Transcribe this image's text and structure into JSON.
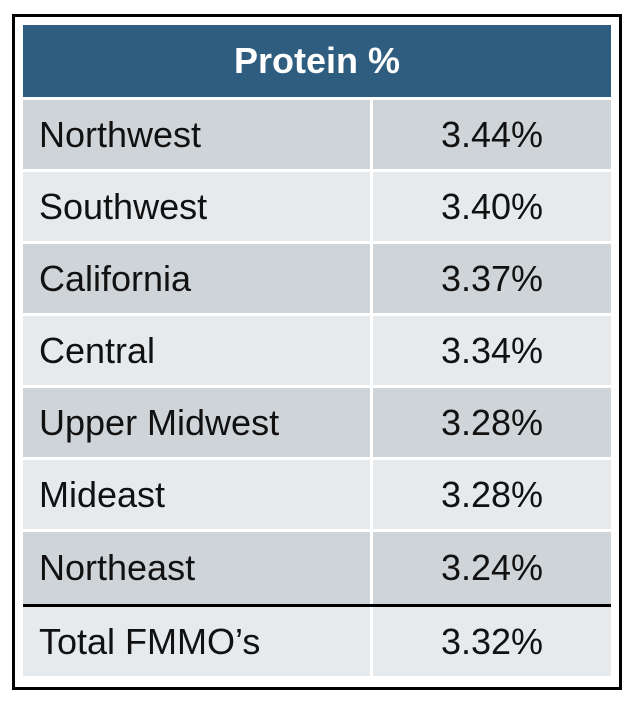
{
  "chart_data": {
    "type": "table",
    "columns": [
      "",
      "Protein %"
    ],
    "header": "Protein %",
    "rows": [
      {
        "label": "Northwest",
        "value": "3.44%"
      },
      {
        "label": "Southwest",
        "value": "3.40%"
      },
      {
        "label": "California",
        "value": "3.37%"
      },
      {
        "label": "Central",
        "value": "3.34%"
      },
      {
        "label": "Upper Midwest",
        "value": "3.28%"
      },
      {
        "label": "Mideast",
        "value": "3.28%"
      },
      {
        "label": "Northeast",
        "value": "3.24%"
      }
    ],
    "total": {
      "label": "Total FMMO’s",
      "value": "3.32%"
    },
    "colors": {
      "header_bg": "#2e5d80",
      "row_dark": "#cfd4d9",
      "row_light": "#e7eaed"
    }
  }
}
